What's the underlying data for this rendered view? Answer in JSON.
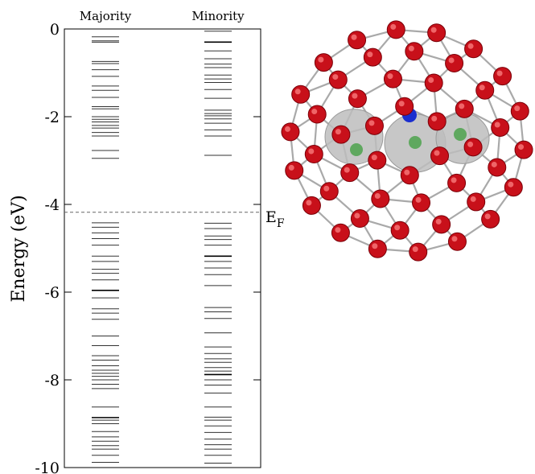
{
  "chart_data": {
    "type": "energy-level-diagram",
    "ylabel": "Energy (eV)",
    "ylim": [
      -10,
      0
    ],
    "yticks": [
      0,
      -2,
      -4,
      -6,
      -8,
      -10
    ],
    "yticks_labels": [
      "0",
      "-2",
      "-4",
      "-6",
      "-8",
      "-10"
    ],
    "columns": [
      "Majority",
      "Minority"
    ],
    "fermi": {
      "label_main": "E",
      "label_sub": "F",
      "value": -4.18
    },
    "series": [
      {
        "name": "Majority",
        "levels": [
          -0.18,
          -0.27,
          -0.3,
          -0.74,
          -0.79,
          -0.93,
          -1.08,
          -1.3,
          -1.4,
          -1.56,
          -1.77,
          -1.82,
          -2.0,
          -2.06,
          -2.12,
          -2.2,
          -2.26,
          -2.36,
          -2.44,
          -2.77,
          -2.95,
          -4.42,
          -4.52,
          -4.65,
          -4.78,
          -4.93,
          -5.18,
          -5.3,
          -5.48,
          -5.57,
          -5.72,
          -5.96,
          -6.13,
          -6.38,
          -6.48,
          -6.62,
          -7.0,
          -7.22,
          -7.45,
          -7.55,
          -7.68,
          -7.78,
          -7.85,
          -7.92,
          -8.0,
          -8.1,
          -8.2,
          -8.62,
          -8.86,
          -8.92,
          -9.0,
          -9.18,
          -9.3,
          -9.4,
          -9.5,
          -9.58,
          -9.72,
          -9.88
        ],
        "bold_levels": [
          -5.96,
          -8.86
        ]
      },
      {
        "name": "Minority",
        "levels": [
          -0.05,
          -0.3,
          -0.5,
          -0.68,
          -0.8,
          -0.88,
          -1.05,
          -1.14,
          -1.22,
          -1.38,
          -1.58,
          -1.85,
          -1.93,
          -1.98,
          -2.05,
          -2.15,
          -2.3,
          -2.44,
          -2.88,
          -4.43,
          -4.55,
          -4.72,
          -4.8,
          -4.93,
          -5.18,
          -5.3,
          -5.45,
          -5.6,
          -5.85,
          -6.35,
          -6.45,
          -6.6,
          -6.93,
          -7.25,
          -7.4,
          -7.52,
          -7.6,
          -7.72,
          -7.8,
          -7.88,
          -8.0,
          -8.12,
          -8.3,
          -8.62,
          -8.85,
          -8.92,
          -9.05,
          -9.2,
          -9.35,
          -9.48,
          -9.58,
          -9.72,
          -9.9
        ],
        "bold_levels": [
          -0.3,
          -5.18,
          -7.88
        ]
      }
    ],
    "grid": false,
    "legend": "none"
  },
  "molecule": {
    "image_alt": "",
    "cage_atom_color": "#c8101a",
    "inner_atom_color": "#5fa85f",
    "center_atom_color": "#1a2ecf",
    "bond_color": "#a9a9a9",
    "orbital_color": "#bdbdbd"
  }
}
